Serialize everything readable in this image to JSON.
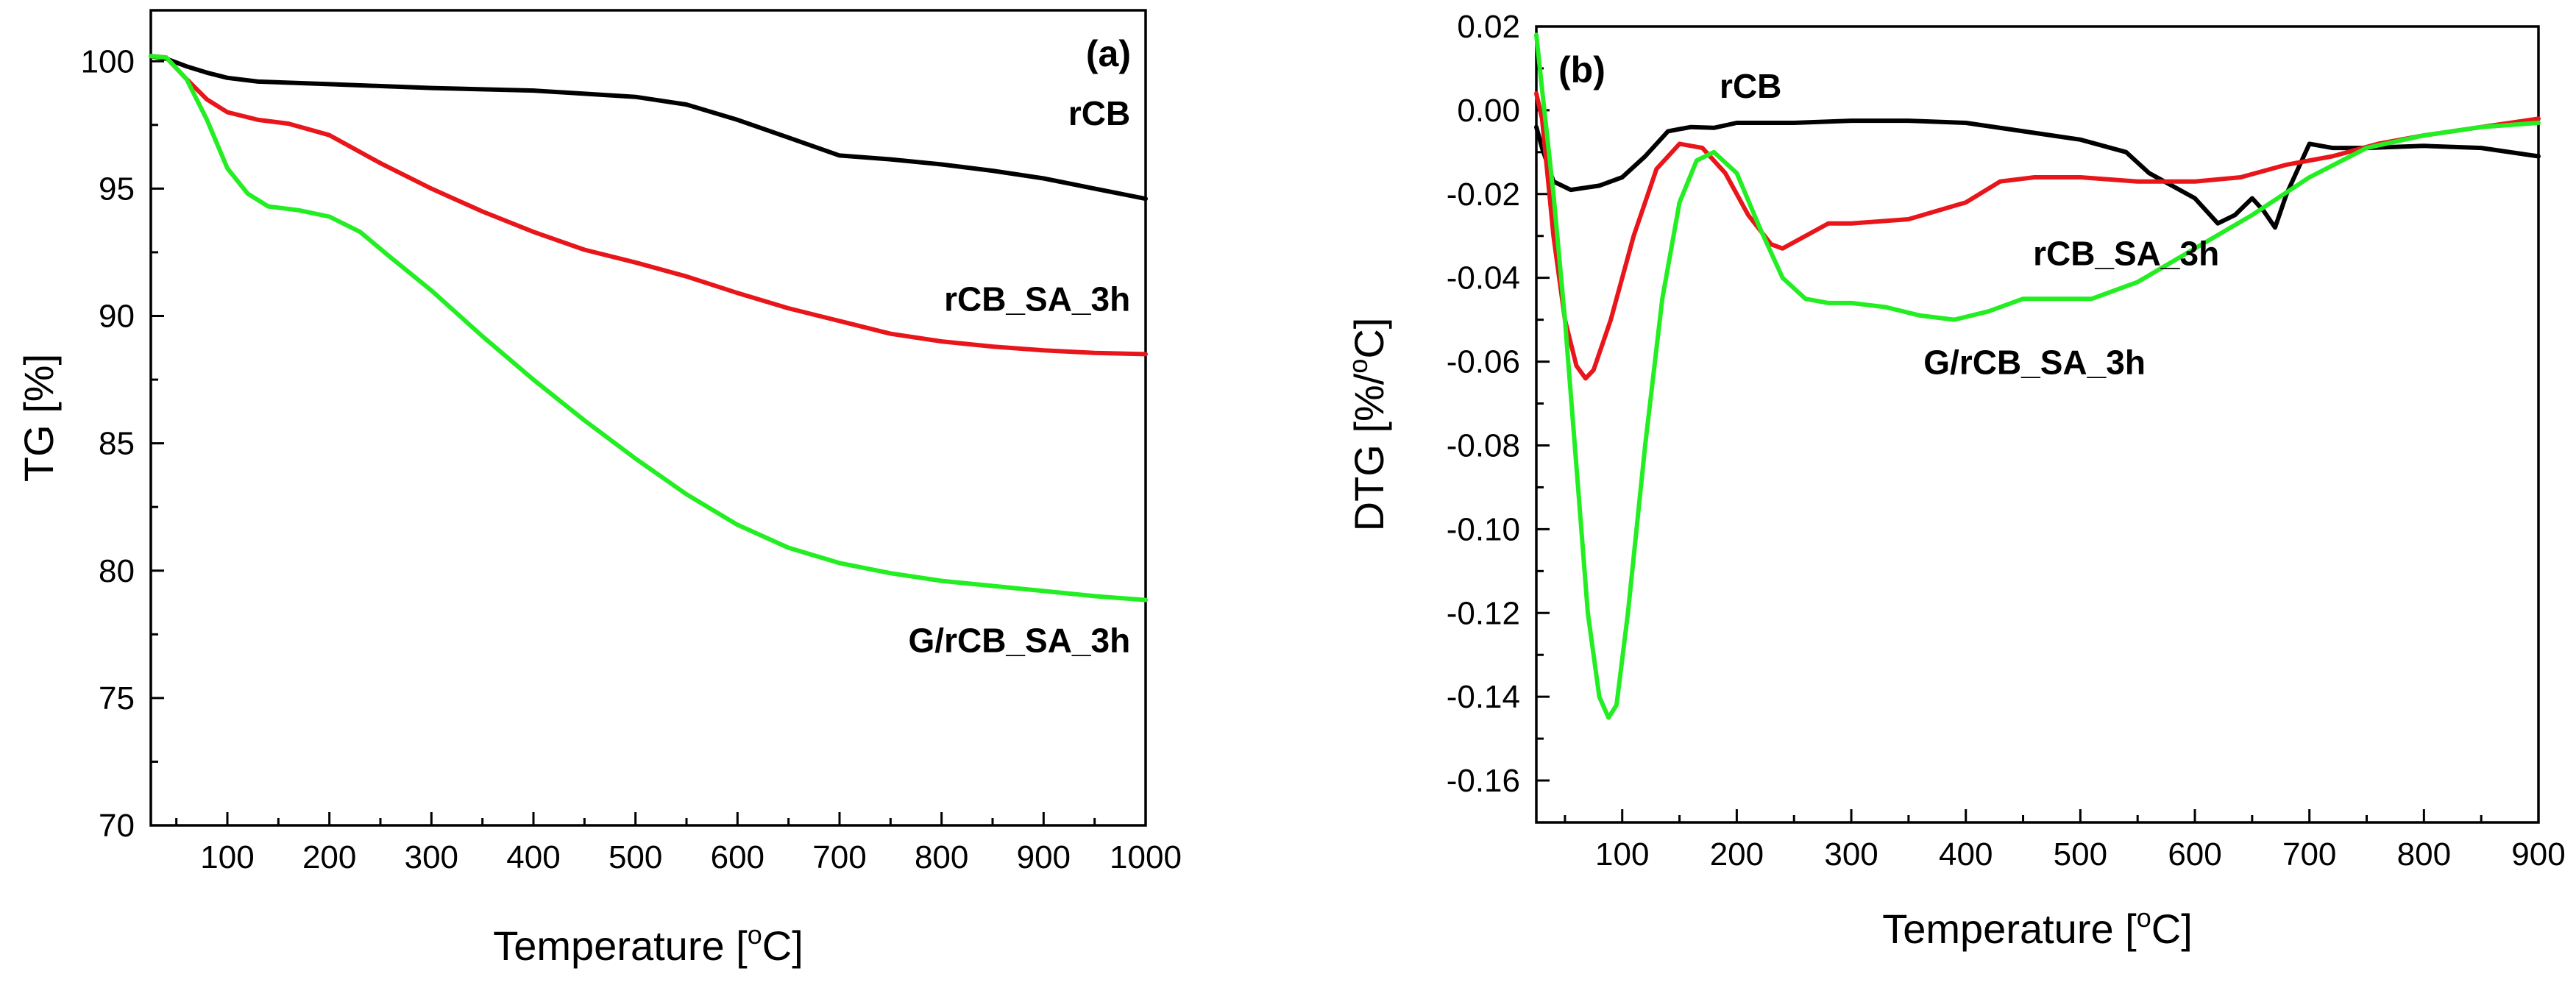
{
  "figure": {
    "panels": [
      "(a)",
      "(b)"
    ]
  },
  "colors": {
    "rCB": "#000000",
    "rCB_SA_3h": "#e8161b",
    "G/rCB_SA_3h": "#22ee22"
  },
  "chart_data": [
    {
      "type": "line",
      "panel_label": "(a)",
      "title": "",
      "xlabel": "Temperature [°C]",
      "xlabel_main": "Temperature [",
      "xlabel_sup": "o",
      "xlabel_end": "C]",
      "ylabel": "TG [%]",
      "xlim": [
        25,
        1000
      ],
      "ylim": [
        70,
        102
      ],
      "xticks": [
        100,
        200,
        300,
        400,
        500,
        600,
        700,
        800,
        900,
        1000
      ],
      "yticks": [
        70,
        75,
        80,
        85,
        90,
        95,
        100
      ],
      "grid": false,
      "series": [
        {
          "name": "rCB",
          "color": "#000000",
          "label_pos": {
            "x": 985,
            "y": 97.5,
            "anchor": "end"
          },
          "points": [
            [
              25,
              100.2
            ],
            [
              40,
              100.1
            ],
            [
              60,
              99.8
            ],
            [
              80,
              99.55
            ],
            [
              100,
              99.35
            ],
            [
              130,
              99.2
            ],
            [
              200,
              99.1
            ],
            [
              300,
              98.95
            ],
            [
              400,
              98.85
            ],
            [
              500,
              98.6
            ],
            [
              550,
              98.3
            ],
            [
              600,
              97.7
            ],
            [
              650,
              97.0
            ],
            [
              700,
              96.3
            ],
            [
              750,
              96.15
            ],
            [
              800,
              95.95
            ],
            [
              850,
              95.7
            ],
            [
              900,
              95.4
            ],
            [
              950,
              95.0
            ],
            [
              1000,
              94.6
            ]
          ]
        },
        {
          "name": "rCB_SA_3h",
          "color": "#e8161b",
          "label_pos": {
            "x": 985,
            "y": 90.2,
            "anchor": "end"
          },
          "points": [
            [
              25,
              100.2
            ],
            [
              40,
              100.15
            ],
            [
              60,
              99.3
            ],
            [
              80,
              98.5
            ],
            [
              100,
              98.0
            ],
            [
              130,
              97.7
            ],
            [
              160,
              97.55
            ],
            [
              200,
              97.1
            ],
            [
              250,
              96.0
            ],
            [
              300,
              95.0
            ],
            [
              350,
              94.1
            ],
            [
              400,
              93.3
            ],
            [
              450,
              92.6
            ],
            [
              500,
              92.1
            ],
            [
              550,
              91.55
            ],
            [
              600,
              90.9
            ],
            [
              650,
              90.3
            ],
            [
              700,
              89.8
            ],
            [
              750,
              89.3
            ],
            [
              800,
              89.0
            ],
            [
              850,
              88.8
            ],
            [
              900,
              88.65
            ],
            [
              950,
              88.55
            ],
            [
              1000,
              88.5
            ]
          ]
        },
        {
          "name": "G/rCB_SA_3h",
          "color": "#22ee22",
          "label_pos": {
            "x": 985,
            "y": 76.8,
            "anchor": "end"
          },
          "points": [
            [
              25,
              100.2
            ],
            [
              40,
              100.15
            ],
            [
              60,
              99.3
            ],
            [
              80,
              97.7
            ],
            [
              100,
              95.8
            ],
            [
              120,
              94.8
            ],
            [
              140,
              94.3
            ],
            [
              170,
              94.15
            ],
            [
              200,
              93.9
            ],
            [
              230,
              93.3
            ],
            [
              260,
              92.3
            ],
            [
              300,
              91.0
            ],
            [
              350,
              89.2
            ],
            [
              400,
              87.5
            ],
            [
              450,
              85.9
            ],
            [
              500,
              84.4
            ],
            [
              550,
              83.0
            ],
            [
              600,
              81.8
            ],
            [
              650,
              80.9
            ],
            [
              700,
              80.3
            ],
            [
              750,
              79.9
            ],
            [
              800,
              79.6
            ],
            [
              850,
              79.4
            ],
            [
              900,
              79.2
            ],
            [
              950,
              79.0
            ],
            [
              1000,
              78.85
            ]
          ]
        }
      ]
    },
    {
      "type": "line",
      "panel_label": "(b)",
      "title": "",
      "xlabel": "Temperature [°C]",
      "xlabel_main": "Temperature [",
      "xlabel_sup": "o",
      "xlabel_end": "C]",
      "ylabel": "DTG [%/°C]",
      "ylabel_main": "DTG [%/",
      "ylabel_sup": "o",
      "ylabel_end": "C]",
      "xlim": [
        25,
        900
      ],
      "ylim": [
        -0.17,
        0.02
      ],
      "xticks": [
        100,
        200,
        300,
        400,
        500,
        600,
        700,
        800,
        900
      ],
      "yticks": [
        -0.16,
        -0.14,
        -0.12,
        -0.1,
        -0.08,
        -0.06,
        -0.04,
        -0.02,
        0.0,
        0.02
      ],
      "ytick_labels": [
        "-0.16",
        "-0.14",
        "-0.12",
        "-0.10",
        "-0.08",
        "-0.06",
        "-0.04",
        "-0.02",
        "0.00",
        "0.02"
      ],
      "grid": false,
      "series": [
        {
          "name": "rCB",
          "color": "#000000",
          "label_pos": {
            "x": 185,
            "y": 0.003,
            "anchor": "start"
          },
          "points": [
            [
              25,
              -0.004
            ],
            [
              30,
              -0.009
            ],
            [
              40,
              -0.017
            ],
            [
              55,
              -0.019
            ],
            [
              80,
              -0.018
            ],
            [
              100,
              -0.016
            ],
            [
              120,
              -0.011
            ],
            [
              140,
              -0.005
            ],
            [
              160,
              -0.004
            ],
            [
              180,
              -0.0042
            ],
            [
              200,
              -0.003
            ],
            [
              250,
              -0.003
            ],
            [
              300,
              -0.0025
            ],
            [
              350,
              -0.0025
            ],
            [
              400,
              -0.003
            ],
            [
              450,
              -0.005
            ],
            [
              500,
              -0.007
            ],
            [
              540,
              -0.01
            ],
            [
              560,
              -0.015
            ],
            [
              580,
              -0.018
            ],
            [
              600,
              -0.021
            ],
            [
              620,
              -0.027
            ],
            [
              635,
              -0.025
            ],
            [
              650,
              -0.021
            ],
            [
              660,
              -0.024
            ],
            [
              670,
              -0.028
            ],
            [
              680,
              -0.02
            ],
            [
              700,
              -0.008
            ],
            [
              720,
              -0.009
            ],
            [
              750,
              -0.009
            ],
            [
              800,
              -0.0085
            ],
            [
              850,
              -0.009
            ],
            [
              900,
              -0.011
            ]
          ]
        },
        {
          "name": "rCB_SA_3h",
          "color": "#e8161b",
          "label_pos": {
            "x": 540,
            "y": -0.037,
            "anchor": "middle"
          },
          "points": [
            [
              25,
              0.004
            ],
            [
              30,
              -0.002
            ],
            [
              40,
              -0.03
            ],
            [
              50,
              -0.05
            ],
            [
              60,
              -0.061
            ],
            [
              68,
              -0.064
            ],
            [
              75,
              -0.062
            ],
            [
              90,
              -0.05
            ],
            [
              110,
              -0.03
            ],
            [
              130,
              -0.014
            ],
            [
              150,
              -0.008
            ],
            [
              170,
              -0.009
            ],
            [
              190,
              -0.015
            ],
            [
              210,
              -0.025
            ],
            [
              230,
              -0.032
            ],
            [
              240,
              -0.033
            ],
            [
              260,
              -0.03
            ],
            [
              280,
              -0.027
            ],
            [
              300,
              -0.027
            ],
            [
              350,
              -0.026
            ],
            [
              400,
              -0.022
            ],
            [
              430,
              -0.017
            ],
            [
              460,
              -0.016
            ],
            [
              500,
              -0.016
            ],
            [
              550,
              -0.017
            ],
            [
              600,
              -0.017
            ],
            [
              640,
              -0.016
            ],
            [
              680,
              -0.013
            ],
            [
              720,
              -0.011
            ],
            [
              760,
              -0.008
            ],
            [
              800,
              -0.006
            ],
            [
              850,
              -0.004
            ],
            [
              900,
              -0.002
            ]
          ]
        },
        {
          "name": "G/rCB_SA_3h",
          "color": "#22ee22",
          "label_pos": {
            "x": 460,
            "y": -0.063,
            "anchor": "middle"
          },
          "points": [
            [
              25,
              0.018
            ],
            [
              30,
              0.005
            ],
            [
              40,
              -0.02
            ],
            [
              50,
              -0.05
            ],
            [
              60,
              -0.085
            ],
            [
              70,
              -0.12
            ],
            [
              80,
              -0.14
            ],
            [
              88,
              -0.145
            ],
            [
              95,
              -0.142
            ],
            [
              105,
              -0.12
            ],
            [
              120,
              -0.08
            ],
            [
              135,
              -0.045
            ],
            [
              150,
              -0.022
            ],
            [
              165,
              -0.012
            ],
            [
              180,
              -0.01
            ],
            [
              200,
              -0.015
            ],
            [
              220,
              -0.028
            ],
            [
              240,
              -0.04
            ],
            [
              260,
              -0.045
            ],
            [
              280,
              -0.046
            ],
            [
              300,
              -0.046
            ],
            [
              330,
              -0.047
            ],
            [
              360,
              -0.049
            ],
            [
              390,
              -0.05
            ],
            [
              420,
              -0.048
            ],
            [
              450,
              -0.045
            ],
            [
              480,
              -0.045
            ],
            [
              510,
              -0.045
            ],
            [
              550,
              -0.041
            ],
            [
              600,
              -0.033
            ],
            [
              650,
              -0.025
            ],
            [
              700,
              -0.016
            ],
            [
              750,
              -0.009
            ],
            [
              800,
              -0.006
            ],
            [
              850,
              -0.004
            ],
            [
              900,
              -0.003
            ]
          ]
        }
      ]
    }
  ]
}
